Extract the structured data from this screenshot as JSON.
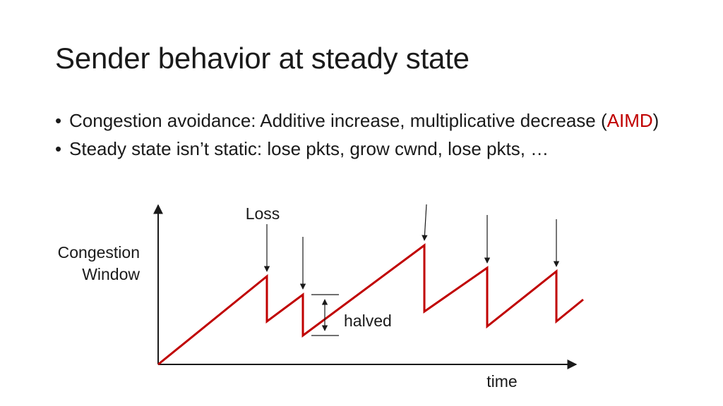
{
  "slide": {
    "title": "Sender behavior at steady state",
    "bullets": [
      {
        "marker": "•",
        "text_before": "Congestion avoidance: Additive increase, multiplicative decrease (",
        "highlight": "AIMD",
        "text_after": ")"
      },
      {
        "marker": "•",
        "text_before": "Steady state isn’t static: lose pkts, grow cwnd, lose pkts, …",
        "highlight": "",
        "text_after": ""
      }
    ],
    "highlight_color": "#c00000"
  },
  "diagram": {
    "y_axis_label_line1": "Congestion",
    "y_axis_label_line2": "Window",
    "x_axis_label": "time",
    "loss_label": "Loss",
    "halved_label": "halved",
    "series_color": "#c00000",
    "axis_color": "#1a1a1a"
  }
}
